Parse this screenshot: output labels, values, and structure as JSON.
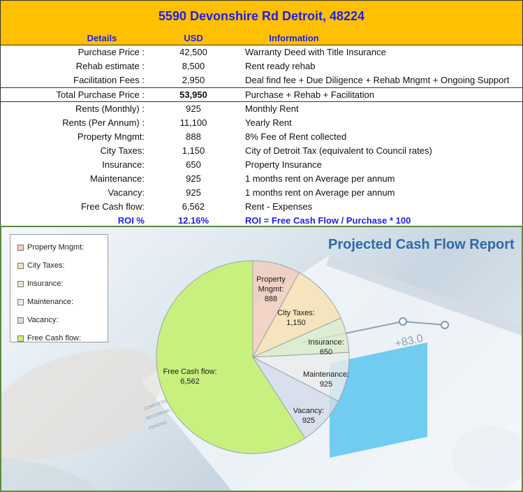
{
  "header": {
    "title": "5590 Devonshire Rd Detroit, 48224",
    "col_details": "Details",
    "col_usd": "USD",
    "col_information": "Information"
  },
  "rows": [
    {
      "label": "Purchase Price :",
      "value": "42,500",
      "info": "Warranty Deed with Title Insurance"
    },
    {
      "label": "Rehab estimate :",
      "value": "8,500",
      "info": "Rent ready rehab"
    },
    {
      "label": "Facilitation Fees :",
      "value": "2,950",
      "info": "Deal find fee + Due Diligence + Rehab Mngmt + Ongoing Support"
    },
    {
      "label": "Total Purchase Price :",
      "value": "53,950",
      "info": "Purchase + Rehab + Facilitation"
    },
    {
      "label": "Rents (Monthly) :",
      "value": "925",
      "info": "Monthly Rent"
    },
    {
      "label": "Rents (Per Annum) :",
      "value": "11,100",
      "info": "Yearly Rent"
    },
    {
      "label": "Property Mngmt:",
      "value": "888",
      "info": "8%  Fee of Rent collected"
    },
    {
      "label": "City Taxes:",
      "value": "1,150",
      "info": "City of Detroit Tax (equivalent to Council rates)"
    },
    {
      "label": "Insurance:",
      "value": "650",
      "info": "Property Insurance"
    },
    {
      "label": "Maintenance:",
      "value": "925",
      "info": "1 months rent on Average per annum"
    },
    {
      "label": "Vacancy:",
      "value": "925",
      "info": "1 months rent on Average per annum"
    },
    {
      "label": "Free Cash flow:",
      "value": "6,562",
      "info": "Rent - Expenses"
    },
    {
      "label": "ROI %",
      "value": "12.16%",
      "info": "ROI = Free Cash Flow / Purchase * 100"
    }
  ],
  "background": {
    "tablet_readout": "+83.0",
    "tablet_labels": [
      "COMPLETED",
      "RECURRING  4.00",
      "PENDING"
    ]
  },
  "chart_data": {
    "type": "pie",
    "title": "Projected Cash Flow Report",
    "legend_position": "top-left",
    "slices": [
      {
        "label": "Property Mngmt:",
        "value": 888,
        "display": "888",
        "color": "#f2cdbb"
      },
      {
        "label": "City Taxes:",
        "value": 1150,
        "display": "1,150",
        "color": "#f7e1b0"
      },
      {
        "label": "Insurance:",
        "value": 650,
        "display": "650",
        "color": "#d8ebc9"
      },
      {
        "label": "Maintenance:",
        "value": 925,
        "display": "925",
        "color": "#ececec"
      },
      {
        "label": "Vacancy:",
        "value": 925,
        "display": "925",
        "color": "#d4dcea"
      },
      {
        "label": "Free Cash flow:",
        "value": 6562,
        "display": "6,562",
        "color": "#c8f07f"
      }
    ]
  }
}
